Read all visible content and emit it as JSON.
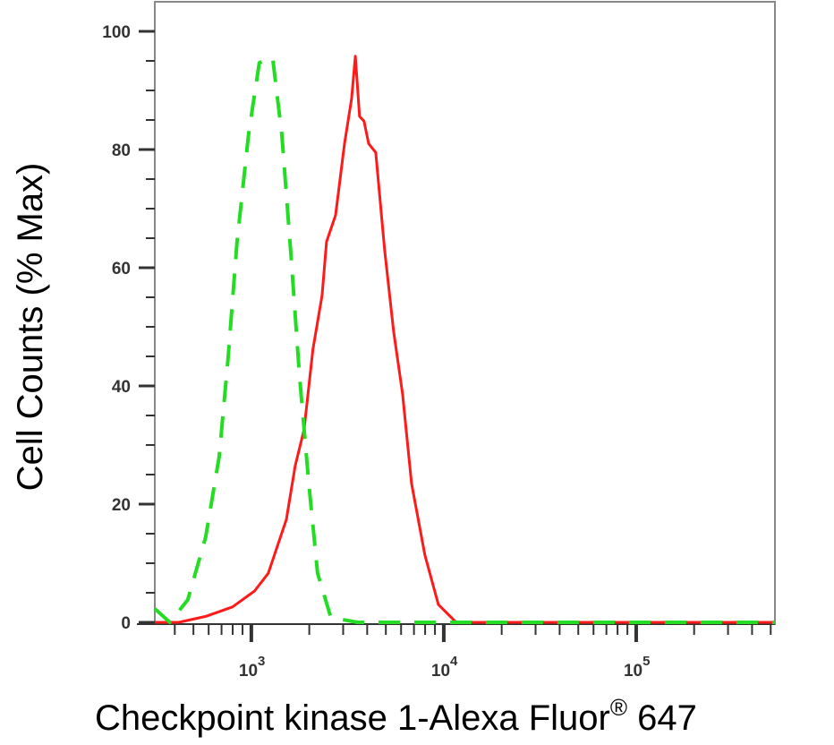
{
  "chart_data": {
    "type": "line",
    "title": "",
    "xlabel": "Checkpoint kinase 1-Alexa Fluor® 647",
    "xlabel_main": "Checkpoint kinase 1-Alexa Fluor",
    "xlabel_sup": "®",
    "xlabel_tail": " 647",
    "ylabel": "Cell Counts (% Max)",
    "xscale": "log",
    "xlim": [
      315,
      526000
    ],
    "ylim": [
      0,
      100
    ],
    "yticks": [
      "0",
      "20",
      "40",
      "60",
      "80",
      "100"
    ],
    "xticks": [
      {
        "value": 1000,
        "base": "10",
        "exp": "3"
      },
      {
        "value": 10000,
        "base": "10",
        "exp": "4"
      },
      {
        "value": 100000,
        "base": "10",
        "exp": "5"
      }
    ],
    "grid": false,
    "legend": "none",
    "series": [
      {
        "color": "#ff1a1a",
        "style": "solid",
        "x": [
          315,
          420,
          579,
          798,
          1040,
          1225,
          1520,
          1690,
          1880,
          2090,
          2330,
          2460,
          2740,
          3050,
          3320,
          3470,
          3650,
          3850,
          4070,
          4430,
          4930,
          5490,
          6110,
          6800,
          7980,
          9380,
          11600,
          526000
        ],
        "y": [
          0,
          0,
          1,
          2.6,
          5.3,
          8.3,
          17.4,
          26.5,
          32.6,
          46.2,
          55.3,
          64.4,
          68.9,
          81,
          88.6,
          95.8,
          85.6,
          84.8,
          81,
          79.5,
          62.9,
          49.2,
          38.6,
          23.5,
          11.4,
          3,
          0,
          0
        ]
      },
      {
        "color": "#22dd22",
        "style": "dashed",
        "x": [
          315,
          377,
          467,
          579,
          680,
          757,
          843,
          968,
          1100,
          1290,
          1440,
          1600,
          1780,
          1990,
          2210,
          2590,
          3570,
          526000
        ],
        "y": [
          2.3,
          0,
          3.8,
          14.4,
          28,
          44.7,
          64.4,
          82.6,
          94.7,
          95.5,
          82.6,
          62.9,
          41.7,
          23.5,
          8.3,
          0.8,
          0,
          0
        ]
      }
    ]
  }
}
